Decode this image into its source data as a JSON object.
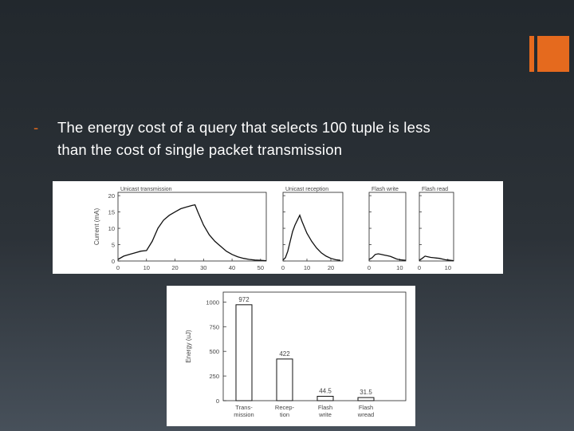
{
  "bullet": {
    "dash": "-",
    "line1": "The energy cost of a query that selects 100 tuple is less",
    "line2": "than the cost of single packet transmission"
  },
  "colors": {
    "accent": "#e56a1e",
    "text": "#ffffff"
  },
  "chart_data": [
    {
      "type": "line",
      "ylabel": "Current (mA)",
      "yticks": [
        "20",
        "15",
        "10",
        "5",
        "0"
      ],
      "panels": [
        {
          "title": "Unicast transmission",
          "xticks": [
            "0",
            "10",
            "20",
            "30",
            "40",
            "50"
          ],
          "xlim": [
            0,
            52
          ],
          "ylim": [
            0,
            21
          ],
          "x": [
            0,
            2,
            4,
            6,
            8,
            10,
            12,
            14,
            16,
            18,
            20,
            22,
            24,
            26,
            27,
            28,
            30,
            32,
            34,
            36,
            38,
            40,
            42,
            44,
            46,
            48,
            50,
            52
          ],
          "y": [
            0.5,
            1.5,
            2,
            2.5,
            3,
            3.2,
            6,
            10,
            12.5,
            14,
            15,
            16,
            16.5,
            17,
            17.2,
            15,
            11,
            8,
            6,
            4.5,
            3,
            2,
            1.3,
            0.8,
            0.5,
            0.3,
            0.2,
            0.1
          ]
        },
        {
          "title": "Unicast reception",
          "xticks": [
            "0",
            "10",
            "20"
          ],
          "xlim": [
            0,
            25
          ],
          "ylim": [
            0,
            21
          ],
          "x": [
            0,
            1,
            2,
            3,
            4,
            5,
            6,
            7,
            8,
            10,
            12,
            14,
            16,
            18,
            20,
            22,
            24
          ],
          "y": [
            0.3,
            1,
            3,
            6,
            9,
            11,
            12.5,
            14,
            12,
            8.5,
            6,
            4,
            2.5,
            1.5,
            0.8,
            0.4,
            0.2
          ]
        },
        {
          "title": "Flash write",
          "xticks": [
            "0",
            "10"
          ],
          "xlim": [
            0,
            12
          ],
          "ylim": [
            0,
            21
          ],
          "x": [
            0,
            1,
            2,
            3,
            4,
            5,
            6,
            7,
            8,
            9,
            10,
            11,
            12
          ],
          "y": [
            0.5,
            1,
            2,
            2.2,
            2,
            1.8,
            1.6,
            1.4,
            1,
            0.6,
            0.4,
            0.3,
            0.2
          ]
        },
        {
          "title": "Flash read",
          "xticks": [
            "0",
            "10"
          ],
          "xlim": [
            0,
            12
          ],
          "ylim": [
            0,
            21
          ],
          "x": [
            0,
            1,
            2,
            3,
            4,
            5,
            6,
            7,
            8,
            9,
            10,
            11,
            12
          ],
          "y": [
            0.2,
            0.8,
            1.5,
            1.3,
            1.1,
            1,
            0.9,
            0.8,
            0.6,
            0.4,
            0.3,
            0.2,
            0.1
          ]
        }
      ]
    },
    {
      "type": "bar",
      "ylabel": "Energy (uJ)",
      "ylim": [
        0,
        1100
      ],
      "yticks": [
        0,
        250,
        500,
        750,
        1000
      ],
      "categories": [
        [
          "Trans-",
          "mission"
        ],
        [
          "Recep-",
          "tion"
        ],
        [
          "Flash",
          "write"
        ],
        [
          "Flash",
          "wread"
        ]
      ],
      "values": [
        972,
        422,
        44.5,
        31.5
      ],
      "value_labels": [
        "972",
        "422",
        "44.5",
        "31.5"
      ]
    }
  ]
}
